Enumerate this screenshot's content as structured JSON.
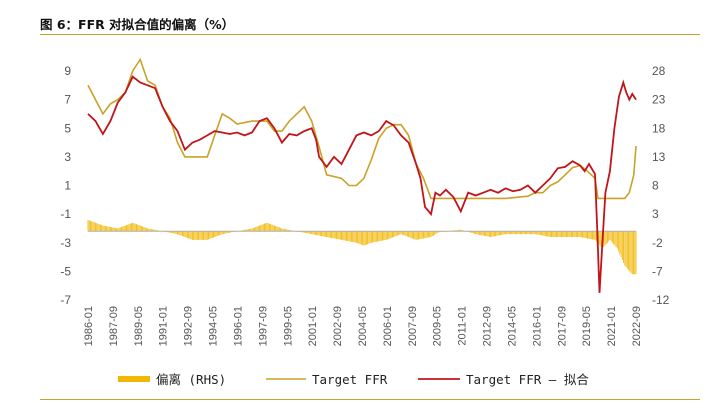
{
  "title": "图 6：FFR 对拟合值的偏离（%）",
  "colors": {
    "bar": "#f2b705",
    "target": "#c9a227",
    "fit": "#c0151b",
    "zero": "#b0b0b0"
  },
  "chart_data": {
    "type": "line",
    "title": "图 6：FFR 对拟合值的偏离（%）",
    "x_range": [
      "1986-01",
      "2022-09"
    ],
    "x_tick_labels": [
      "1986-01",
      "1987-09",
      "1989-05",
      "1991-01",
      "1992-09",
      "1994-05",
      "1996-01",
      "1997-09",
      "1999-05",
      "2001-01",
      "2002-09",
      "2004-05",
      "2006-01",
      "2007-09",
      "2009-05",
      "2011-01",
      "2012-09",
      "2014-05",
      "2016-01",
      "2017-09",
      "2019-05",
      "2021-01",
      "2022-09"
    ],
    "y_left": {
      "min": -7,
      "max": 9,
      "ticks": [
        9,
        7,
        5,
        3,
        1,
        -1,
        -3,
        -5,
        -7
      ]
    },
    "y_right": {
      "min": -12,
      "max": 28,
      "ticks": [
        28,
        23,
        18,
        13,
        8,
        3,
        -2,
        -7,
        -12
      ]
    },
    "legend_position": "bottom",
    "series": [
      {
        "name": "偏离 (RHS)",
        "type": "bar",
        "axis": "right",
        "x": [
          1986.0,
          1987.0,
          1988.0,
          1989.0,
          1990.0,
          1991.0,
          1992.0,
          1993.0,
          1994.0,
          1995.0,
          1996.0,
          1997.0,
          1998.0,
          1999.0,
          2000.0,
          2001.0,
          2002.0,
          2003.0,
          2004.0,
          2004.5,
          2005.0,
          2006.0,
          2007.0,
          2008.0,
          2009.0,
          2009.5,
          2010.0,
          2011.0,
          2012.0,
          2013.0,
          2014.0,
          2015.0,
          2016.0,
          2017.0,
          2018.0,
          2019.0,
          2020.0,
          2020.5,
          2021.0,
          2021.5,
          2022.0,
          2022.5
        ],
        "values": [
          2.0,
          1.0,
          0.5,
          1.5,
          0.5,
          0.0,
          -0.5,
          -1.5,
          -1.5,
          -0.5,
          0.0,
          0.5,
          1.5,
          0.5,
          0.0,
          -0.5,
          -1.0,
          -1.5,
          -2.0,
          -2.5,
          -2.0,
          -1.5,
          -0.5,
          -1.5,
          -1.0,
          -0.2,
          0.0,
          0.3,
          -0.5,
          -1.0,
          -0.5,
          -0.5,
          -0.5,
          -1.0,
          -1.0,
          -1.0,
          -1.5,
          -3.0,
          -1.5,
          -3.0,
          -6.0,
          -7.5
        ]
      },
      {
        "name": "Target FFR",
        "type": "line",
        "axis": "left",
        "x": [
          1986.0,
          1986.5,
          1987.0,
          1987.5,
          1988.0,
          1988.5,
          1989.0,
          1989.5,
          1990.0,
          1990.5,
          1991.0,
          1991.5,
          1992.0,
          1992.5,
          1993.0,
          1994.0,
          1994.5,
          1995.0,
          1995.5,
          1996.0,
          1997.0,
          1998.0,
          1998.5,
          1999.0,
          1999.5,
          2000.0,
          2000.5,
          2001.0,
          2001.5,
          2002.0,
          2003.0,
          2003.5,
          2004.0,
          2004.5,
          2005.0,
          2005.5,
          2006.0,
          2006.5,
          2007.0,
          2007.5,
          2008.0,
          2008.5,
          2009.0,
          2010.0,
          2012.0,
          2014.0,
          2015.5,
          2016.0,
          2016.5,
          2017.0,
          2017.5,
          2018.0,
          2018.5,
          2019.0,
          2019.5,
          2020.0,
          2020.2,
          2021.0,
          2021.5,
          2022.0,
          2022.3,
          2022.6,
          2022.75
        ],
        "values": [
          8.0,
          7.0,
          6.0,
          6.7,
          7.0,
          7.5,
          9.0,
          9.8,
          8.3,
          8.0,
          6.5,
          5.7,
          4.0,
          3.0,
          3.0,
          3.0,
          4.5,
          6.0,
          5.7,
          5.3,
          5.5,
          5.5,
          4.8,
          4.8,
          5.5,
          6.0,
          6.5,
          5.5,
          3.7,
          1.75,
          1.5,
          1.0,
          1.0,
          1.5,
          2.8,
          4.3,
          5.0,
          5.25,
          5.25,
          4.5,
          2.5,
          1.5,
          0.1,
          0.1,
          0.1,
          0.1,
          0.25,
          0.5,
          0.5,
          1.0,
          1.25,
          1.75,
          2.25,
          2.4,
          2.0,
          1.5,
          0.1,
          0.1,
          0.1,
          0.1,
          0.5,
          1.75,
          3.75
        ]
      },
      {
        "name": "Target FFR – 拟合",
        "type": "line",
        "axis": "left",
        "x": [
          1986.0,
          1986.5,
          1987.0,
          1987.5,
          1988.0,
          1988.5,
          1989.0,
          1989.5,
          1990.0,
          1990.5,
          1991.0,
          1991.5,
          1992.0,
          1992.5,
          1993.0,
          1993.5,
          1994.0,
          1994.5,
          1995.0,
          1995.5,
          1996.0,
          1996.5,
          1997.0,
          1997.5,
          1998.0,
          1998.5,
          1999.0,
          1999.5,
          2000.0,
          2000.5,
          2001.0,
          2001.3,
          2001.5,
          2002.0,
          2002.5,
          2003.0,
          2003.5,
          2004.0,
          2004.5,
          2005.0,
          2005.5,
          2006.0,
          2006.5,
          2007.0,
          2007.5,
          2008.0,
          2008.3,
          2008.6,
          2009.0,
          2009.3,
          2009.6,
          2010.0,
          2010.5,
          2011.0,
          2011.5,
          2012.0,
          2012.5,
          2013.0,
          2013.5,
          2014.0,
          2014.5,
          2015.0,
          2015.5,
          2016.0,
          2016.5,
          2017.0,
          2017.5,
          2018.0,
          2018.5,
          2019.0,
          2019.3,
          2019.6,
          2020.0,
          2020.15,
          2020.3,
          2020.5,
          2020.7,
          2021.0,
          2021.3,
          2021.6,
          2021.9,
          2022.1,
          2022.3,
          2022.5,
          2022.75
        ],
        "values": [
          6.0,
          5.5,
          4.6,
          5.5,
          6.8,
          7.5,
          8.6,
          8.2,
          8.0,
          7.8,
          6.5,
          5.5,
          4.8,
          3.5,
          4.0,
          4.2,
          4.5,
          4.8,
          4.7,
          4.6,
          4.7,
          4.5,
          4.7,
          5.5,
          5.7,
          5.0,
          4.0,
          4.6,
          4.5,
          4.8,
          5.0,
          4.2,
          3.0,
          2.3,
          3.0,
          2.5,
          3.5,
          4.5,
          4.7,
          4.5,
          4.8,
          5.5,
          5.2,
          4.5,
          4.0,
          2.5,
          1.5,
          -0.5,
          -1.0,
          0.5,
          0.3,
          0.7,
          0.2,
          -0.8,
          0.5,
          0.3,
          0.5,
          0.7,
          0.5,
          0.8,
          0.6,
          0.7,
          1.0,
          0.5,
          1.0,
          1.5,
          2.2,
          2.3,
          2.7,
          2.4,
          2.0,
          2.5,
          1.8,
          -2.0,
          -6.5,
          -3.0,
          0.5,
          2.0,
          5.0,
          7.2,
          8.2,
          7.5,
          7.0,
          7.4,
          7.0
        ]
      }
    ]
  }
}
